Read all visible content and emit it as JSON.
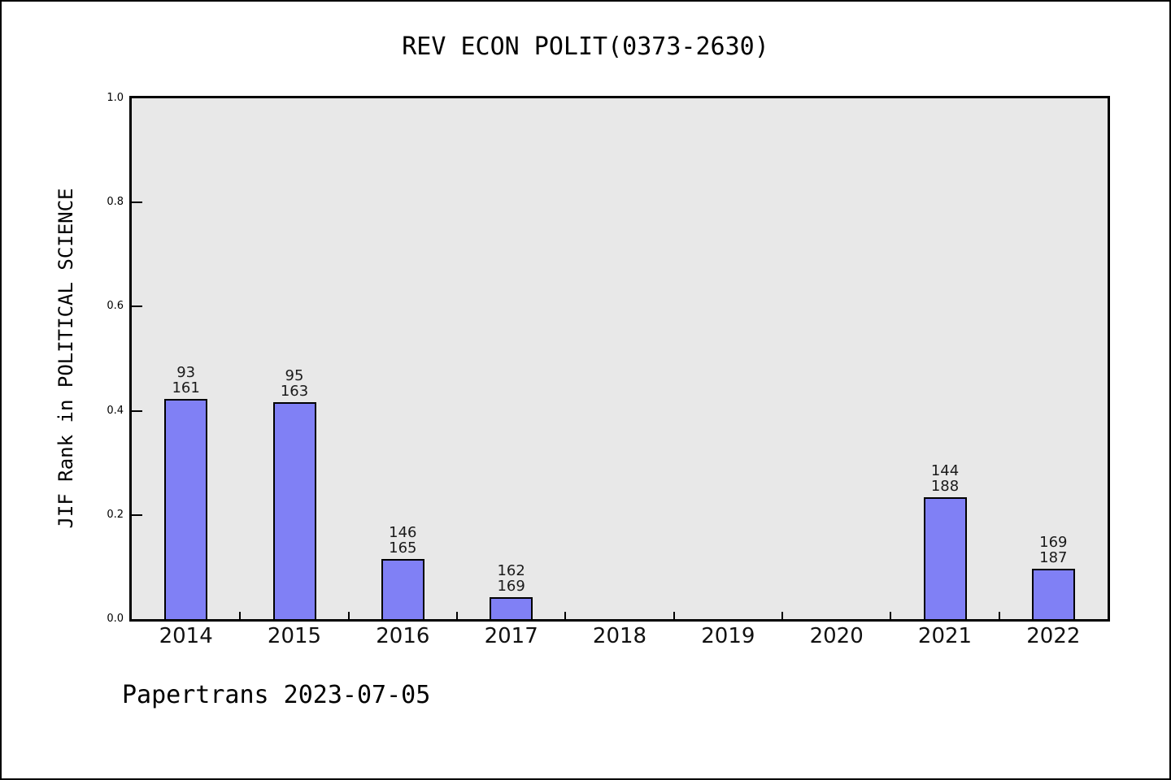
{
  "title": "REV ECON POLIT(0373-2630)",
  "watermark": "Papertrans 2023-07-05",
  "colors": {
    "bar_fill": "#8080f5",
    "bar_border": "#000000",
    "plot_background": "#e8e8e8",
    "page_background": "#ffffff",
    "frame_border": "#000000"
  },
  "chart_data": {
    "type": "bar",
    "title": "REV ECON POLIT(0373-2630)",
    "xlabel": "",
    "ylabel": "JIF Rank in POLITICAL SCIENCE",
    "ylim": [
      0.0,
      1.0
    ],
    "ytick_labels": [
      "0.0",
      "0.2",
      "0.4",
      "0.6",
      "0.8",
      "1.0"
    ],
    "grid": false,
    "legend": null,
    "categories": [
      "2014",
      "2015",
      "2016",
      "2017",
      "2018",
      "2019",
      "2020",
      "2021",
      "2022"
    ],
    "values": [
      0.4224,
      0.4172,
      0.1152,
      0.0414,
      null,
      null,
      null,
      0.234,
      0.0963
    ],
    "bar_labels": [
      [
        "93",
        "161"
      ],
      [
        "95",
        "163"
      ],
      [
        "146",
        "165"
      ],
      [
        "162",
        "169"
      ],
      null,
      null,
      null,
      [
        "144",
        "188"
      ],
      [
        "169",
        "187"
      ]
    ],
    "bar_label_meaning": "rank / total (value = 1 - rank/total)"
  }
}
